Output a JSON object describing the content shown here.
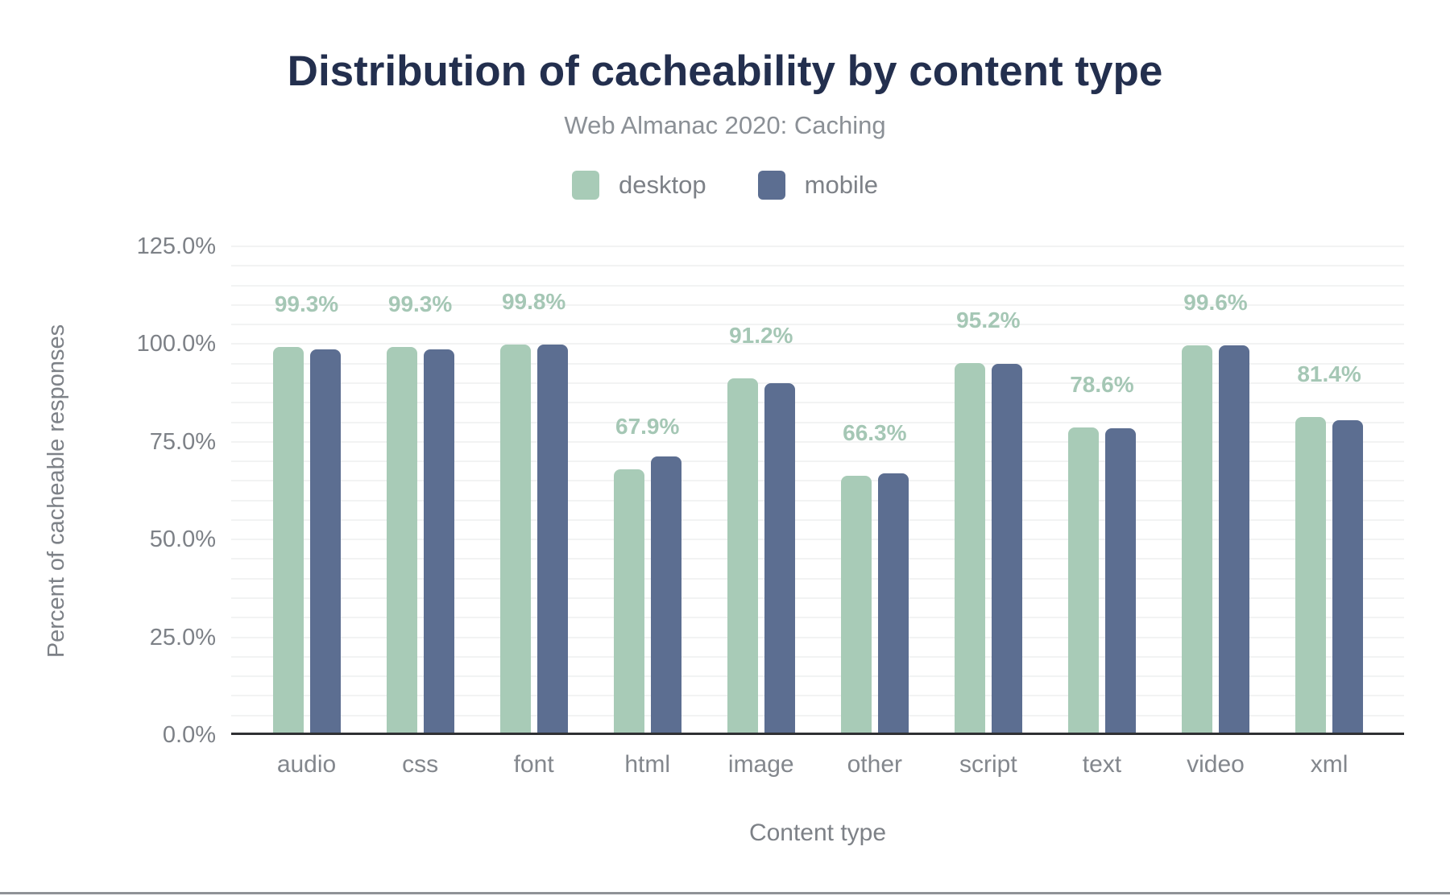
{
  "chart_data": {
    "type": "bar",
    "title": "Distribution of cacheability by content type",
    "subtitle": "Web Almanac 2020: Caching",
    "xlabel": "Content type",
    "ylabel": "Percent of cacheable responses",
    "ylim": [
      0,
      125
    ],
    "ytick_labels": [
      "0.0%",
      "25.0%",
      "50.0%",
      "75.0%",
      "100.0%",
      "125.0%"
    ],
    "ytick_interval_major": 25,
    "gridline_interval_minor": 5,
    "grid": "on",
    "legend_position": "top",
    "categories": [
      "audio",
      "css",
      "font",
      "html",
      "image",
      "other",
      "script",
      "text",
      "video",
      "xml"
    ],
    "series": [
      {
        "name": "desktop",
        "color": "#a8cbb7",
        "values": [
          99.3,
          99.3,
          99.8,
          67.9,
          91.2,
          66.3,
          95.2,
          78.6,
          99.6,
          81.4
        ],
        "data_labels": [
          "99.3%",
          "99.3%",
          "99.8%",
          "67.9%",
          "91.2%",
          "66.3%",
          "95.2%",
          "78.6%",
          "99.6%",
          "81.4%"
        ]
      },
      {
        "name": "mobile",
        "color": "#5c6e91",
        "values": [
          98.6,
          98.6,
          99.9,
          71.3,
          90.0,
          66.9,
          95.0,
          78.4,
          99.7,
          80.5
        ],
        "data_labels": []
      }
    ],
    "colors": {
      "title": "#232f4e",
      "subtitle": "#8b9096",
      "axis_text": "#7d8187",
      "category_text": "#83878d",
      "data_label": "#a5c7b5",
      "gridline": "#f2f3f3",
      "axis_line": "#2f3033",
      "bottom_rule": "#8f9296"
    }
  }
}
